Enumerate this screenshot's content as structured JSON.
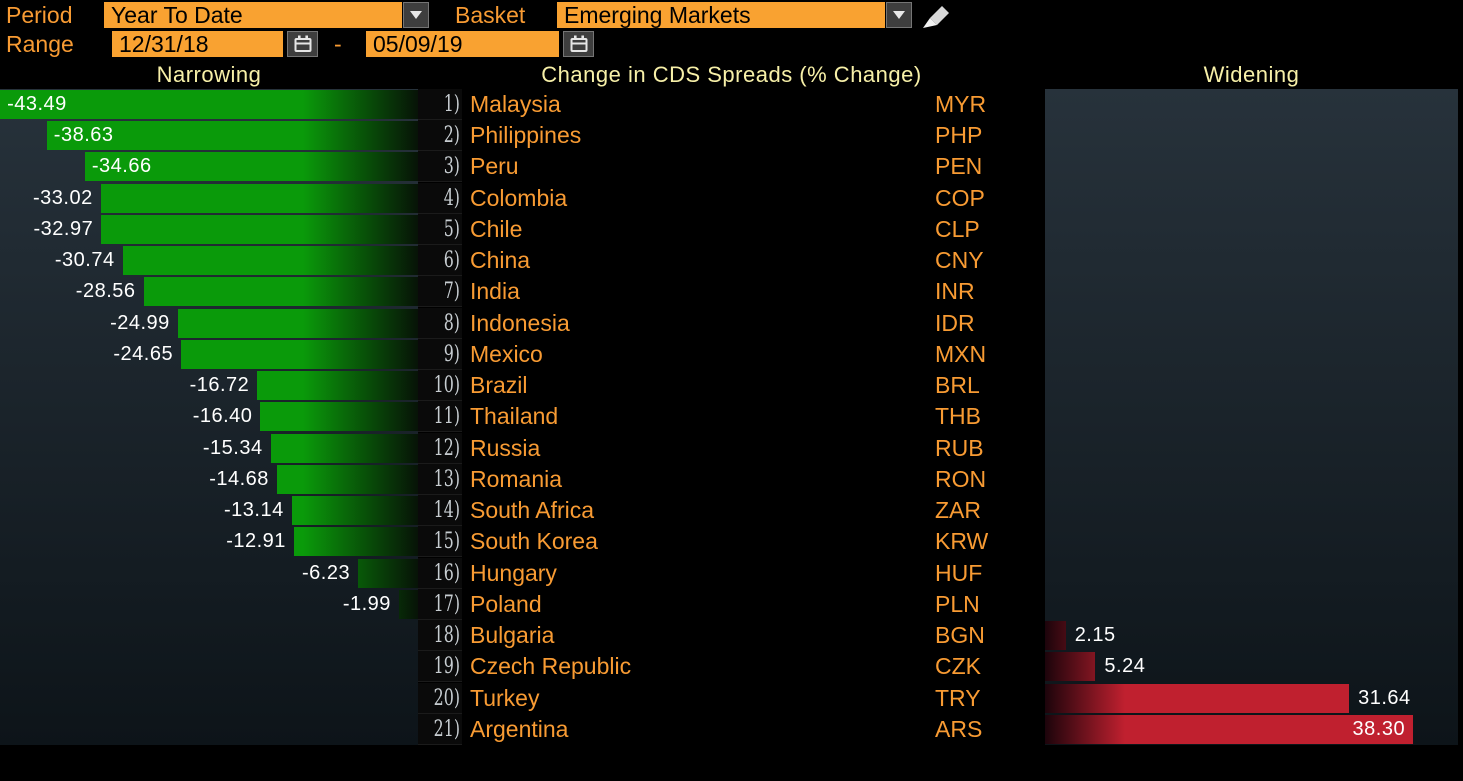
{
  "controls": {
    "period_label": "Period",
    "period_value": "Year To Date",
    "basket_label": "Basket",
    "basket_value": "Emerging Markets",
    "range_label": "Range",
    "range_start": "12/31/18",
    "range_separator": "-",
    "range_end": "05/09/19"
  },
  "icons": {
    "dropdown": "chevron-down-icon",
    "calendar": "calendar-icon",
    "edit": "pencil-icon"
  },
  "headers": {
    "left": "Narrowing",
    "center": "Change in CDS Spreads (% Change)",
    "right": "Widening"
  },
  "colors": {
    "accent_orange": "#F89B33",
    "field_orange": "#F9A231",
    "header_yellow": "#F7F0A8",
    "bar_green": "#0A9A0A",
    "bar_red": "#C0202F",
    "value_text": "#FFFFFF",
    "rank_silver": "#C7CDD1",
    "panel_top": "#27323B",
    "panel_bottom": "#0D1419"
  },
  "chart_data": {
    "type": "bar",
    "orientation": "horizontal-diverging",
    "title": "Change in CDS Spreads (% Change)",
    "negative_side_label": "Narrowing",
    "positive_side_label": "Widening",
    "unit": "% change",
    "xlim": [
      -43.49,
      38.3
    ],
    "ranks": [
      "1)",
      "2)",
      "3)",
      "4)",
      "5)",
      "6)",
      "7)",
      "8)",
      "9)",
      "10)",
      "11)",
      "12)",
      "13)",
      "14)",
      "15)",
      "16)",
      "17)",
      "18)",
      "19)",
      "20)",
      "21)"
    ],
    "categories": [
      "Malaysia",
      "Philippines",
      "Peru",
      "Colombia",
      "Chile",
      "China",
      "India",
      "Indonesia",
      "Mexico",
      "Brazil",
      "Thailand",
      "Russia",
      "Romania",
      "South Africa",
      "South Korea",
      "Hungary",
      "Poland",
      "Bulgaria",
      "Czech Republic",
      "Turkey",
      "Argentina"
    ],
    "currencies": [
      "MYR",
      "PHP",
      "PEN",
      "COP",
      "CLP",
      "CNY",
      "INR",
      "IDR",
      "MXN",
      "BRL",
      "THB",
      "RUB",
      "RON",
      "ZAR",
      "KRW",
      "HUF",
      "PLN",
      "BGN",
      "CZK",
      "TRY",
      "ARS"
    ],
    "values": [
      -43.49,
      -38.63,
      -34.66,
      -33.02,
      -32.97,
      -30.74,
      -28.56,
      -24.99,
      -24.65,
      -16.72,
      -16.4,
      -15.34,
      -14.68,
      -13.14,
      -12.91,
      -6.23,
      -1.99,
      2.15,
      5.24,
      31.64,
      38.3
    ],
    "value_labels": [
      "-43.49",
      "-38.63",
      "-34.66",
      "-33.02",
      "-32.97",
      "-30.74",
      "-28.56",
      "-24.99",
      "-24.65",
      "-16.72",
      "-16.40",
      "-15.34",
      "-14.68",
      "-13.14",
      "-12.91",
      "-6.23",
      "-1.99",
      "2.15",
      "5.24",
      "31.64",
      "38.30"
    ]
  }
}
